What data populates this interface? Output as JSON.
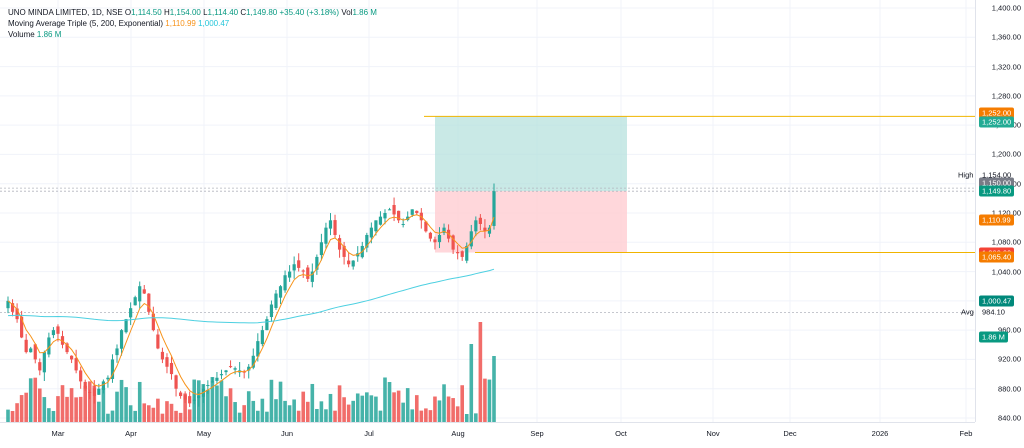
{
  "legend": {
    "symbol": "UNO MINDA LIMITED, 1D, NSE",
    "o_label": "O",
    "o_value": "1,114.50",
    "h_label": "H",
    "h_value": "1,154.00",
    "l_label": "L",
    "l_value": "1,114.40",
    "c_label": "C",
    "c_value": "1,149.80",
    "change": "+35.40 (+3.18%)",
    "vol_label": "Vol",
    "vol_value": "1.86 M",
    "ma_label": "Moving Average Triple (5, 200, Exponential)",
    "ma_value1": "1,110.99",
    "ma_value2": "1,000.47",
    "volume_label": "Volume",
    "volume_value": "1.86 M"
  },
  "colors": {
    "up": "#26a69a",
    "down": "#ef5350",
    "ma_fast": "#f7931a",
    "ma_slow": "#4dd0e1",
    "target_zone": "#b2dfdb",
    "stop_zone": "#ffcdd2",
    "level_line": "#f0b400"
  },
  "price_axis": {
    "ticks": [
      "1,400.00",
      "1,360.00",
      "1,320.00",
      "1,280.00",
      "1,240.00",
      "1,200.00",
      "1,160.00",
      "1,120.00",
      "1,080.00",
      "1,040.00",
      "960.00",
      "920.00",
      "880.00",
      "840.00"
    ],
    "badges": [
      {
        "text": "1,252.00",
        "color": "#f57c00"
      },
      {
        "text": "1,252.00",
        "color": "#22ab94"
      },
      {
        "text": "1,154.00",
        "color": "#ffffff",
        "text_color": "#131722"
      },
      {
        "text": "1,150.00",
        "color": "#787b86"
      },
      {
        "text": "1,149.80",
        "color": "#089981"
      },
      {
        "text": "1,110.99",
        "color": "#f57c00"
      },
      {
        "text": "1,066.00",
        "color": "#f44336"
      },
      {
        "text": "1,065.40",
        "color": "#f57c00"
      },
      {
        "text": "1,000.47",
        "color": "#00897b"
      },
      {
        "text": "984.10",
        "color": "#ffffff",
        "text_color": "#131722"
      },
      {
        "text": "1.86 M",
        "color": "#089981"
      }
    ],
    "high_label": "High",
    "avg_label": "Avg"
  },
  "time_axis": {
    "labels": [
      "Mar",
      "Apr",
      "May",
      "Jun",
      "Jul",
      "Aug",
      "Sep",
      "Oct",
      "Nov",
      "Dec",
      "2026",
      "Feb"
    ]
  },
  "chart_data": {
    "type": "candlestick",
    "ylim": [
      840,
      1400
    ],
    "position": {
      "entry": 1150,
      "target": 1252,
      "stop": 1066
    },
    "closes": [
      1000,
      985,
      975,
      950,
      930,
      935,
      920,
      905,
      930,
      950,
      960,
      955,
      940,
      930,
      920,
      905,
      890,
      880,
      875,
      870,
      880,
      890,
      895,
      920,
      935,
      960,
      975,
      990,
      1005,
      1020,
      1010,
      985,
      960,
      935,
      920,
      910,
      900,
      880,
      870,
      865,
      860,
      865,
      870,
      880,
      885,
      890,
      895,
      900,
      905,
      910,
      908,
      905,
      902,
      910,
      925,
      945,
      960,
      975,
      995,
      1010,
      1020,
      1035,
      1040,
      1050,
      1045,
      1040,
      1030,
      1040,
      1060,
      1080,
      1100,
      1110,
      1090,
      1070,
      1060,
      1050,
      1055,
      1065,
      1075,
      1090,
      1100,
      1110,
      1115,
      1120,
      1125,
      1118,
      1110,
      1105,
      1115,
      1125,
      1120,
      1110,
      1095,
      1085,
      1080,
      1090,
      1100,
      1085,
      1070,
      1065,
      1060,
      1075,
      1095,
      1110,
      1105,
      1095,
      1100,
      1149.8
    ]
  }
}
